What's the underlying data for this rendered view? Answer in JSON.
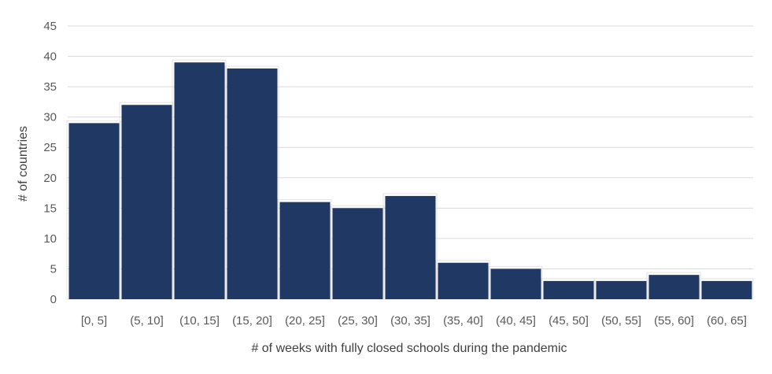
{
  "chart_data": {
    "type": "bar",
    "categories": [
      "[0, 5]",
      "(5, 10]",
      "(10, 15]",
      "(15, 20]",
      "(20, 25]",
      "(25, 30]",
      "(30, 35]",
      "(35, 40]",
      "(40, 45]",
      "(45, 50]",
      "(50, 55]",
      "(55, 60]",
      "(60, 65]"
    ],
    "values": [
      29,
      32,
      39,
      38,
      16,
      15,
      17,
      6,
      5,
      3,
      3,
      4,
      3
    ],
    "xlabel": "# of weeks with fully closed schools during the pandemic",
    "ylabel": "# of countries",
    "ylim": [
      0,
      45
    ],
    "yticks": [
      0,
      5,
      10,
      15,
      20,
      25,
      30,
      35,
      40,
      45
    ],
    "grid": true,
    "bar_color": "#203864",
    "grid_color": "#d9d9d9"
  }
}
